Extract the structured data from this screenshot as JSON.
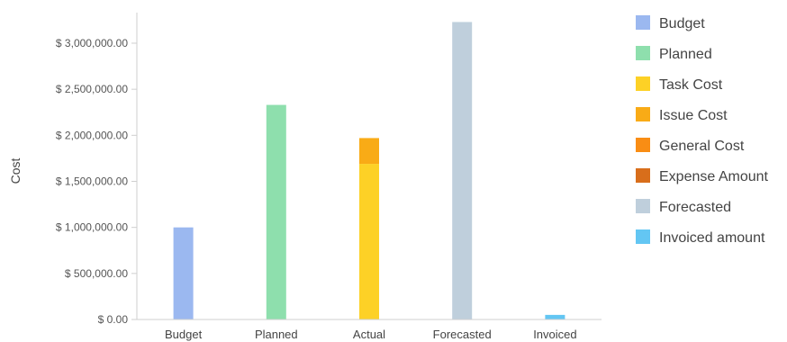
{
  "chart_data": {
    "type": "bar",
    "stacked": true,
    "title": "",
    "xlabel": "",
    "ylabel": "Cost",
    "ylim": [
      0,
      3000000
    ],
    "y_ticks": [
      {
        "value": 0,
        "label": "$ 0.00"
      },
      {
        "value": 500000,
        "label": "$ 500,000.00"
      },
      {
        "value": 1000000,
        "label": "$ 1,000,000.00"
      },
      {
        "value": 1500000,
        "label": "$ 1,500,000.00"
      },
      {
        "value": 2000000,
        "label": "$ 2,000,000.00"
      },
      {
        "value": 2500000,
        "label": "$ 2,500,000.00"
      },
      {
        "value": 3000000,
        "label": "$ 3,000,000.00"
      }
    ],
    "categories": [
      "Budget",
      "Planned",
      "Actual",
      "Forecasted",
      "Invoiced"
    ],
    "series": [
      {
        "name": "Budget",
        "color": "#9bb8f0",
        "values": [
          1000000,
          0,
          0,
          0,
          0
        ]
      },
      {
        "name": "Planned",
        "color": "#8edfad",
        "values": [
          0,
          2330000,
          0,
          0,
          0
        ]
      },
      {
        "name": "Task Cost",
        "color": "#fdd126",
        "values": [
          0,
          0,
          1690000,
          0,
          0
        ]
      },
      {
        "name": "Issue Cost",
        "color": "#f9ab16",
        "values": [
          0,
          0,
          280000,
          0,
          0
        ]
      },
      {
        "name": "General Cost",
        "color": "#f98d14",
        "values": [
          0,
          0,
          0,
          0,
          0
        ]
      },
      {
        "name": "Expense Amount",
        "color": "#d86e1b",
        "values": [
          0,
          0,
          0,
          0,
          0
        ]
      },
      {
        "name": "Forecasted",
        "color": "#bfcfdc",
        "values": [
          0,
          0,
          0,
          3230000,
          0
        ]
      },
      {
        "name": "Invoiced amount",
        "color": "#63c6f3",
        "values": [
          0,
          0,
          0,
          0,
          50000
        ]
      }
    ],
    "grid": false,
    "legend_position": "right"
  }
}
